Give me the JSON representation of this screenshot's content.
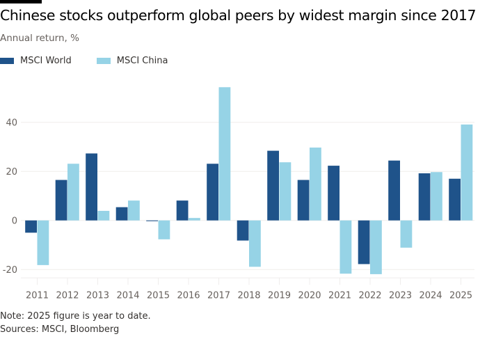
{
  "header": {
    "title": "Chinese stocks outperform global peers by widest margin since 2017",
    "subtitle": "Annual return, %"
  },
  "legend": [
    {
      "label": "MSCI World",
      "color": "#1f538a"
    },
    {
      "label": "MSCI China",
      "color": "#96d3e6"
    }
  ],
  "footer": {
    "note": "Note: 2025 figure is year to date.",
    "sources": "Sources: MSCI, Bloomberg"
  },
  "chart_data": {
    "type": "bar",
    "title": "Chinese stocks outperform global peers by widest margin since 2017",
    "subtitle": "Annual return, %",
    "xlabel": "",
    "ylabel": "Annual return, %",
    "ylim": [
      -22,
      58
    ],
    "yticks": [
      -20,
      0,
      20,
      40
    ],
    "ytick_labels": [
      "-20",
      "0",
      "20",
      "40"
    ],
    "grid": true,
    "legend_position": "top-left",
    "categories": [
      "2011",
      "2012",
      "2013",
      "2014",
      "2015",
      "2016",
      "2017",
      "2018",
      "2019",
      "2020",
      "2021",
      "2022",
      "2023",
      "2024",
      "2025"
    ],
    "series": [
      {
        "name": "MSCI World",
        "color": "#1f538a",
        "values": [
          -5.0,
          16.5,
          27.3,
          5.4,
          -0.3,
          8.1,
          23.1,
          -8.2,
          28.4,
          16.5,
          22.3,
          -17.8,
          24.4,
          19.2,
          17.0
        ]
      },
      {
        "name": "MSCI China",
        "color": "#96d3e6",
        "values": [
          -18.2,
          23.1,
          3.9,
          8.1,
          -7.7,
          1.0,
          54.3,
          -18.9,
          23.7,
          29.7,
          -21.7,
          -21.9,
          -11.1,
          19.7,
          39.1
        ]
      }
    ]
  }
}
